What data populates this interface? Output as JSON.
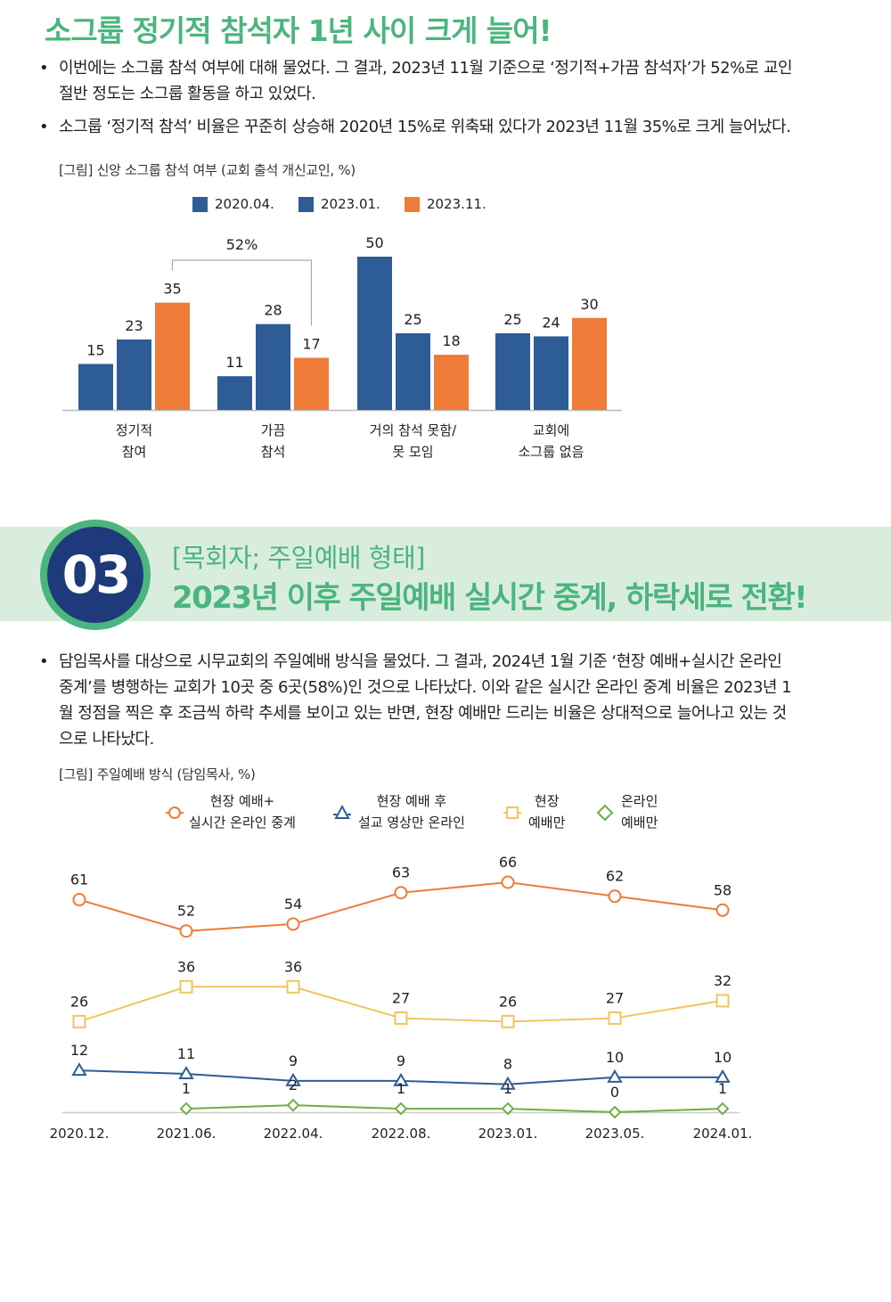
{
  "section1": {
    "title": "소그룹 정기적 참석자 1년 사이 크게 늘어!",
    "bullets": [
      {
        "line1": "이번에는 소그룹 참석 여부에 대해 물었다. 그 결과, 2023년 11월 기준으로 ‘정기적+가끔 참석자’가 52%로 교인",
        "line2": "절반 정도는 소그룹 활동을 하고 있었다."
      },
      {
        "line1": "소그룹 ‘정기적 참석’ 비율은 꾸준히 상승해 2020년 15%로 위축돼 있다가 2023년 11월 35%로 크게 늘어났다."
      }
    ],
    "bullet_symbol": "•",
    "figure_caption": "[그림] 신앙 소그룹 참석 여부 (교회 출석 개신교인, %)"
  },
  "chart1": {
    "type": "bar",
    "categories": [
      [
        "정기적",
        "참여"
      ],
      [
        "가끔",
        "참석"
      ],
      [
        "거의 참석 못함/",
        "못 모임"
      ],
      [
        "교회에",
        "소그룹 없음"
      ]
    ],
    "series": [
      {
        "name": "2020.04.",
        "color": "#2e5c97",
        "values": [
          15,
          11,
          50,
          25
        ]
      },
      {
        "name": "2023.01.",
        "color": "#2e5c97",
        "values": [
          23,
          28,
          25,
          24
        ]
      },
      {
        "name": "2023.11.",
        "color": "#ee7b38",
        "values": [
          35,
          17,
          18,
          30
        ]
      }
    ],
    "annotation": "52%",
    "ylim": [
      0,
      55
    ]
  },
  "section2": {
    "number": "03",
    "subtitle": "[목회자; 주일예배 형태]",
    "title": "2023년 이후 주일예배 실시간 중계, 하락세로 전환!",
    "bullet_lines": [
      "담임목사를 대상으로 시무교회의 주일예배 방식을 물었다. 그 결과, 2024년 1월 기준 ‘현장 예배+실시간 온라인",
      "중계’를 병행하는 교회가 10곳 중 6곳(58%)인 것으로 나타났다. 이와 같은 실시간 온라인 중계 비율은 2023년 1",
      "월 정점을 찍은 후 조금씩 하락 추세를 보이고 있는 반면, 현장 예배만 드리는 비율은 상대적으로 늘어나고 있는 것",
      "으로 나타났다."
    ],
    "figure_caption": "[그림] 주일예배 방식 (담임목사, %)"
  },
  "chart2": {
    "type": "line",
    "x": [
      "2020.12.",
      "2021.06.",
      "2022.04.",
      "2022.08.",
      "2023.01.",
      "2023.05.",
      "2024.01."
    ],
    "series": [
      {
        "name": [
          "현장 예배+",
          "실시간 온라인 중계"
        ],
        "color": "#ee7b38",
        "marker": "circle",
        "values": [
          61,
          52,
          54,
          63,
          66,
          62,
          58
        ]
      },
      {
        "name": [
          "현장 예배 후",
          "설교 영상만 온라인"
        ],
        "color": "#2e5c97",
        "marker": "triangle",
        "values": [
          12,
          11,
          9,
          9,
          8,
          10,
          10
        ]
      },
      {
        "name": [
          "현장",
          "예배만"
        ],
        "color": "#f2c45f",
        "marker": "square",
        "values": [
          26,
          36,
          36,
          27,
          26,
          27,
          32
        ]
      },
      {
        "name": [
          "온라인",
          "예배만"
        ],
        "color": "#70ad47",
        "marker": "diamond",
        "values": [
          null,
          1,
          2,
          1,
          1,
          0,
          1
        ]
      }
    ],
    "ylim": [
      0,
      70
    ]
  }
}
